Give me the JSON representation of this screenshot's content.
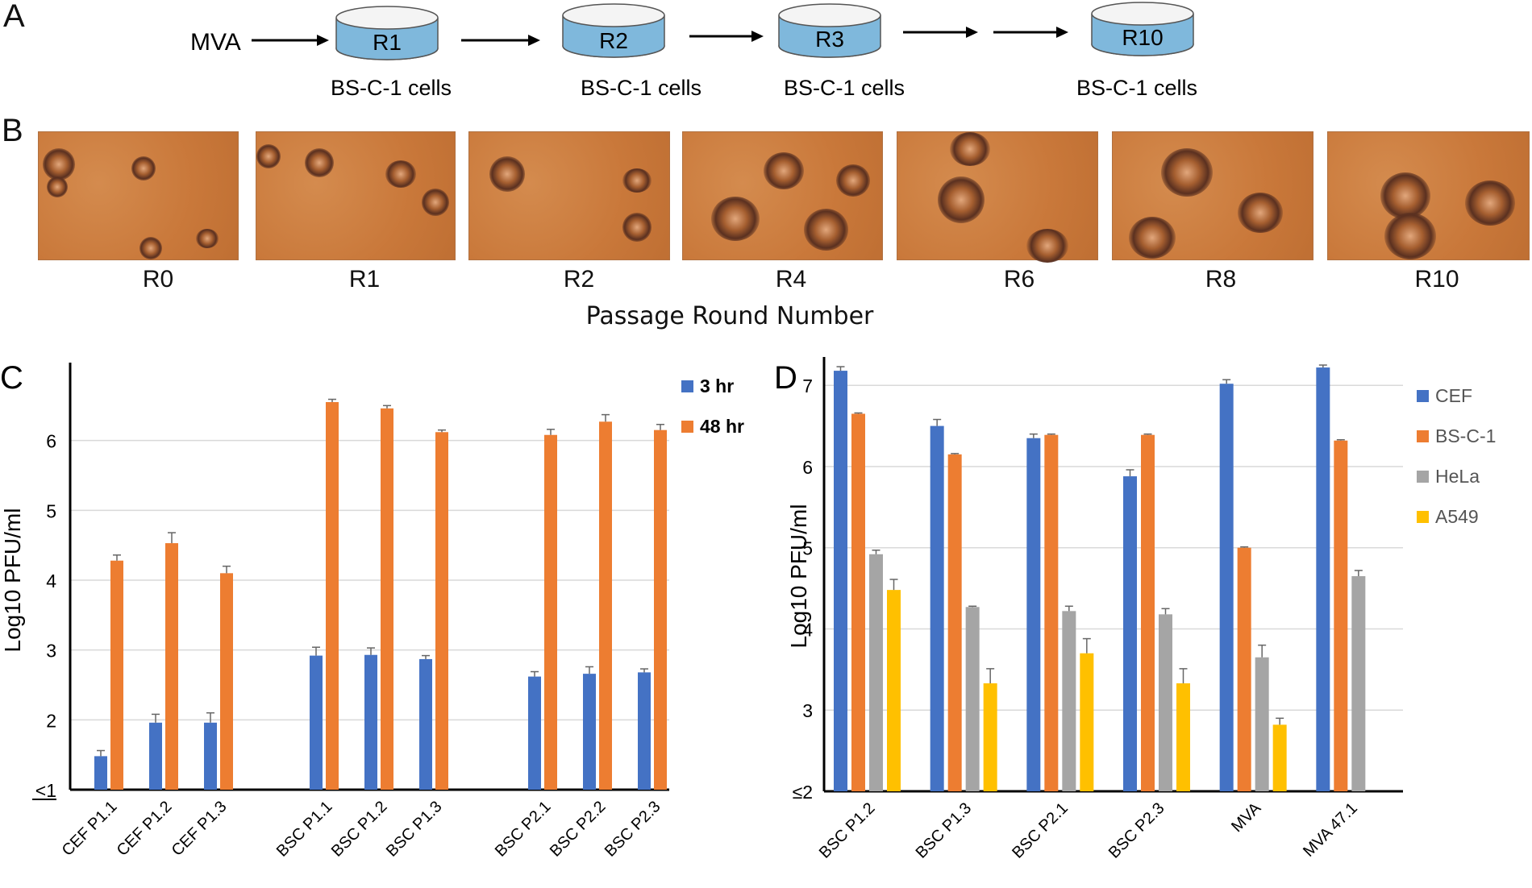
{
  "panelA": {
    "label": "A",
    "input_label": "MVA",
    "dishes": [
      {
        "name": "R1",
        "caption": "BS-C-1 cells"
      },
      {
        "name": "R2",
        "caption": "BS-C-1 cells"
      },
      {
        "name": "R3",
        "caption": "BS-C-1 cells"
      },
      {
        "name": "R10",
        "caption": "BS-C-1 cells"
      }
    ]
  },
  "panelB": {
    "label": "B",
    "rounds": [
      "R0",
      "R1",
      "R2",
      "R4",
      "R6",
      "R8",
      "R10"
    ],
    "axis_caption": "Passage Round Number"
  },
  "colors": {
    "blue": "#4472c4",
    "orange": "#ed7d31",
    "gray": "#a5a5a5",
    "yellow": "#ffc000",
    "dish_fill": "#7fb8dc",
    "photo_bg": "#c9783a"
  },
  "chart_data": [
    {
      "panel_label": "C",
      "type": "bar",
      "ylabel": "Log10 PFU/ml",
      "ylim": [
        1,
        7
      ],
      "yticks": [
        "<1",
        "2",
        "3",
        "4",
        "5",
        "6"
      ],
      "grid": true,
      "legend_position": "right",
      "groups": [
        [
          "CEF P1.1",
          "CEF P1.2",
          "CEF P1.3"
        ],
        [
          "BSC P1.1",
          "BSC P1.2",
          "BSC P1.3"
        ],
        [
          "BSC P2.1",
          "BSC P2.2",
          "BSC P2.3"
        ]
      ],
      "series": [
        {
          "name": "3 hr",
          "color": "#4472c4",
          "values": [
            1.48,
            1.96,
            1.96,
            2.92,
            2.93,
            2.87,
            2.62,
            2.66,
            2.68
          ],
          "errors": [
            0.08,
            0.12,
            0.14,
            0.12,
            0.1,
            0.05,
            0.07,
            0.1,
            0.05
          ]
        },
        {
          "name": "48 hr",
          "color": "#ed7d31",
          "values": [
            4.28,
            4.53,
            4.1,
            6.55,
            6.46,
            6.12,
            6.08,
            6.27,
            6.15
          ],
          "errors": [
            0.08,
            0.15,
            0.1,
            0.04,
            0.04,
            0.03,
            0.08,
            0.1,
            0.08
          ]
        }
      ]
    },
    {
      "panel_label": "D",
      "type": "bar",
      "ylabel": "Log10 PFU/ml",
      "ylim": [
        2,
        7.3
      ],
      "yticks": [
        "≤2",
        "3",
        "4",
        "5",
        "6",
        "7"
      ],
      "grid": true,
      "legend_position": "right",
      "categories": [
        "BSC P1.2",
        "BSC P1.3",
        "BSC P2.1",
        "BSC P2.3",
        "MVA",
        "MVA 47.1"
      ],
      "series": [
        {
          "name": "CEF",
          "color": "#4472c4",
          "values": [
            7.18,
            6.5,
            6.35,
            5.88,
            7.02,
            7.22
          ],
          "errors": [
            0.05,
            0.08,
            0.05,
            0.08,
            0.05,
            0.03
          ]
        },
        {
          "name": "BS-C-1",
          "color": "#ed7d31",
          "values": [
            6.65,
            6.15,
            6.39,
            6.39,
            5.0,
            6.32
          ],
          "errors": [
            0.01,
            0.01,
            0.01,
            0.01,
            0.01,
            0.01
          ]
        },
        {
          "name": "HeLa",
          "color": "#a5a5a5",
          "values": [
            4.92,
            4.27,
            4.22,
            4.18,
            3.65,
            4.65
          ],
          "errors": [
            0.05,
            0.01,
            0.06,
            0.07,
            0.15,
            0.07
          ]
        },
        {
          "name": "A549",
          "color": "#ffc000",
          "values": [
            4.48,
            3.33,
            3.7,
            3.33,
            2.82,
            null
          ],
          "errors": [
            0.13,
            0.18,
            0.18,
            0.18,
            0.08,
            null
          ]
        }
      ]
    }
  ]
}
